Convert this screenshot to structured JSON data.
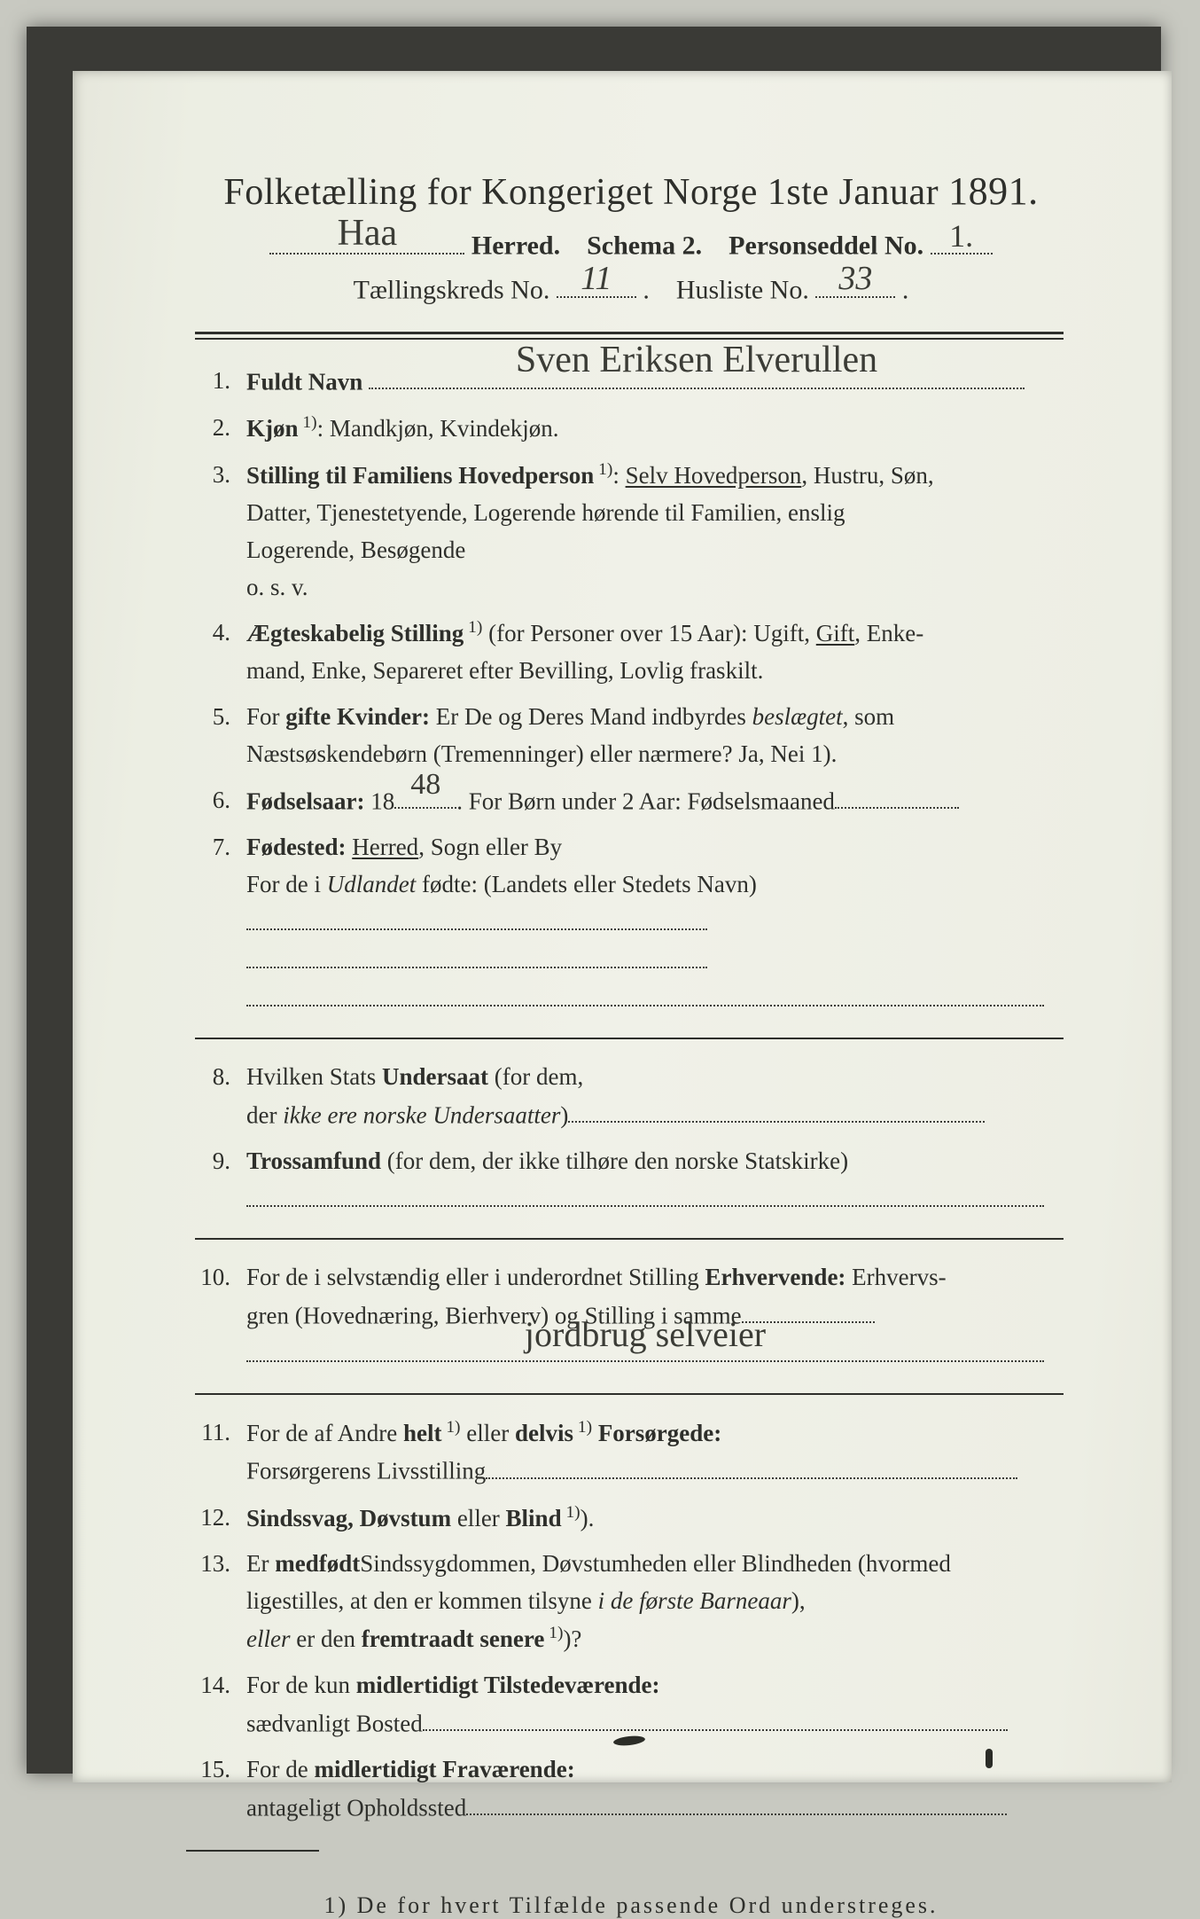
{
  "colors": {
    "page_bg": "#c8c9c1",
    "frame": "#3a3a36",
    "paper": "#f0f1e8",
    "ink": "#2e2f2b",
    "dotline": "#3a3b36",
    "handwriting": "#3b3c36"
  },
  "typography": {
    "title_fontsize": 42,
    "subtitle_fontsize": 30,
    "body_fontsize": 27,
    "footnote_fontsize": 26,
    "footnote_letterspacing": 3,
    "line_height": 1.55
  },
  "header": {
    "title_pre": "Folketælling for Kongeriget Norge 1ste Januar ",
    "title_year": "1891.",
    "herred_hw": "Haa",
    "herred_label": " Herred.",
    "schema_label": "Schema 2.",
    "personseddel_label": "Personseddel No.",
    "personseddel_hw": "1.",
    "tk_label": "Tællingskreds No.",
    "tk_hw": "11",
    "husliste_label": "Husliste No.",
    "husliste_hw": "33"
  },
  "items": [
    {
      "n": "1.",
      "label": "Fuldt Navn",
      "rest": "",
      "hw": "Sven Eriksen Elverullen"
    },
    {
      "n": "2.",
      "label": "Kjøn",
      "sup": "1",
      "rest": ": Mandkjøn, Kvindekjøn."
    },
    {
      "n": "3.",
      "label": "Stilling til Familiens Hovedperson",
      "sup": "1",
      "rest": ": Selv Hovedperson, Hustru, Søn,",
      "cont": [
        "Datter, Tjenestetyende, Logerende hørende til Familien, enslig",
        "Logerende, Besøgende",
        "o. s. v."
      ],
      "underline_phrase": "Selv Hovedperson"
    },
    {
      "n": "4.",
      "label": "Ægteskabelig Stilling",
      "sup": "1",
      "rest": " (for Personer over 15 Aar): Ugift, Gift, Enke-",
      "cont": [
        "mand, Enke, Separeret efter Bevilling, Lovlig fraskilt."
      ],
      "underline_phrase": "Gift"
    },
    {
      "n": "5.",
      "label_plain": "For ",
      "label": "gifte Kvinder:",
      "rest": " Er De og Deres Mand indbyrdes beslægtet, som",
      "cont": [
        "Næstsøskendebørn (Tremenninger) eller nærmere?  Ja, Nei 1)."
      ],
      "italic_word": "beslægtet"
    },
    {
      "n": "6.",
      "label": "Fødselsaar:",
      "rest_a": " 18",
      "year_hw": "48",
      "rest_b": " For Børn under 2 Aar: Fødselsmaaned",
      "tail_dots_w": 140
    },
    {
      "n": "7.",
      "label": "Fødested:",
      "rest": " Herred, Sogn eller By",
      "cont_plain": "For de i ",
      "cont_italic": "Udlandet",
      "cont_tail": " fødte: (Landets eller Stedets Navn)",
      "tail_dots_w": 520,
      "underline_phrase": "Herred",
      "blank_line_w": 900
    },
    {
      "n": "8.",
      "label_plain": "Hvilken Stats ",
      "label": "Undersaat",
      "rest": " (for dem,",
      "cont_plain": "der ",
      "cont_italic": "ikke ere norske Undersaatter",
      "cont_tail": ")",
      "tail_dots_w": 470
    },
    {
      "n": "9.",
      "label": "Trossamfund",
      "rest": "  (for dem, der ikke tilhøre den norske Statskirke)",
      "blank_line_w": 900
    },
    {
      "n": "10.",
      "label_plain": "For de i selvstændig eller i underordnet Stilling ",
      "label": "Erhvervende:",
      "rest": " Erhvervs-",
      "cont": [
        "gren (Hovednæring, Bierhverv) og Stilling i samme"
      ],
      "cont_tail_dots_w": 150,
      "hw_line": "jordbrug   selveier",
      "blank_line_w": 900
    },
    {
      "n": "11.",
      "label_plain": "For de af Andre ",
      "label": "helt",
      "sup": "1",
      "mid": " eller ",
      "label2": "delvis",
      "sup2": "1",
      "label3": " Forsørgede:",
      "cont_plain2": "Forsørgerens Livsstilling",
      "tail_dots_w": 600
    },
    {
      "n": "12.",
      "label": "Sindssvag, Døvstum",
      "mid": " eller ",
      "label2": "Blind",
      "sup2": "1",
      "tail": ")."
    },
    {
      "n": "13.",
      "label_plain": "Er ",
      "rest": "Sindssygdommen, Døvstumheden eller Blindheden ",
      "label": "medfødt",
      "tail": " (hvormed",
      "cont_mixed": [
        {
          "plain": "ligestilles, at den er kommen tilsyne ",
          "italic": "i de første Barneaar",
          "tail": "),"
        },
        {
          "italic": "eller",
          "plain2": " er den ",
          "bold": "fremtraadt senere",
          "sup": "1",
          "tail": ")?"
        }
      ]
    },
    {
      "n": "14.",
      "label_plain": "For de kun ",
      "label": "midlertidigt Tilstedeværende:",
      "cont_plain2": "sædvanligt Bosted",
      "tail_dots_w": 660
    },
    {
      "n": "15.",
      "label_plain": "For de ",
      "label": "midlertidigt Fraværende:",
      "cont_plain2": "antageligt Opholdssted",
      "tail_dots_w": 610
    }
  ],
  "footnote": "1) De for hvert Tilfælde passende Ord understreges.",
  "separators_after": [
    7,
    9,
    10
  ]
}
